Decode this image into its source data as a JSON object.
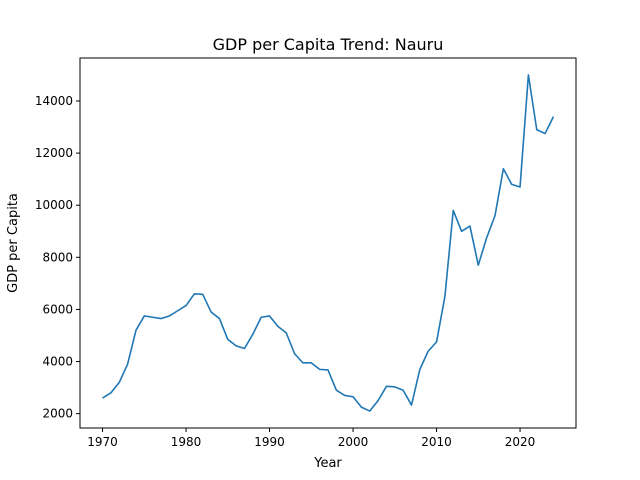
{
  "chart_data": {
    "type": "line",
    "title": "GDP per Capita Trend: Nauru",
    "xlabel": "Year",
    "ylabel": "GDP per Capita",
    "xlim": [
      1967.3,
      2026.7
    ],
    "ylim": [
      1450,
      15650
    ],
    "xticks": [
      1970,
      1980,
      1990,
      2000,
      2010,
      2020
    ],
    "yticks": [
      2000,
      4000,
      6000,
      8000,
      10000,
      12000,
      14000
    ],
    "grid": false,
    "line_color": "#1f77b4",
    "series": [
      {
        "x": [
          1970,
          1971,
          1972,
          1973,
          1974,
          1975,
          1976,
          1977,
          1978,
          1979,
          1980,
          1981,
          1982,
          1983,
          1984,
          1985,
          1986,
          1987,
          1988,
          1989,
          1990,
          1991,
          1992,
          1993,
          1994,
          1995,
          1996,
          1997,
          1998,
          1999,
          2000,
          2001,
          2002,
          2003,
          2004,
          2005,
          2006,
          2007,
          2008,
          2009,
          2010,
          2011,
          2012,
          2013,
          2014,
          2015,
          2016,
          2017,
          2018,
          2019,
          2020,
          2021,
          2022,
          2023,
          2024
        ],
        "values": [
          2600,
          2800,
          3200,
          3900,
          5200,
          5750,
          5700,
          5650,
          5750,
          5950,
          6150,
          6600,
          6580,
          5900,
          5650,
          4850,
          4600,
          4500,
          5050,
          5700,
          5750,
          5350,
          5100,
          4300,
          3950,
          3950,
          3700,
          3680,
          2900,
          2700,
          2650,
          2250,
          2100,
          2500,
          3050,
          3030,
          2900,
          2330,
          3700,
          4400,
          4750,
          6500,
          9800,
          9000,
          9200,
          7700,
          8750,
          9600,
          11400,
          10800,
          10700,
          15000,
          12900,
          12750,
          13400
        ]
      }
    ]
  }
}
